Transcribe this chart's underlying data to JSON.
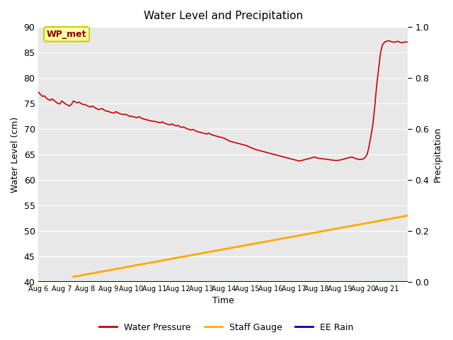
{
  "title": "Water Level and Precipitation",
  "xlabel": "Time",
  "ylabel_left": "Water Level (cm)",
  "ylabel_right": "Precipitation",
  "ylim_left": [
    40,
    90
  ],
  "ylim_right": [
    0.0,
    1.0
  ],
  "yticks_left": [
    40,
    45,
    50,
    55,
    60,
    65,
    70,
    75,
    80,
    85,
    90
  ],
  "yticks_right": [
    0.0,
    0.2,
    0.4,
    0.6,
    0.8,
    1.0
  ],
  "bg_color": "#e8e8e8",
  "legend_labels": [
    "Water Pressure",
    "Staff Gauge",
    "EE Rain"
  ],
  "legend_colors": [
    "#cc0000",
    "#ffaa00",
    "#0000bb"
  ],
  "annotation_text": "WP_met",
  "water_pressure": {
    "x": [
      0.0,
      0.08,
      0.17,
      0.25,
      0.33,
      0.42,
      0.5,
      0.58,
      0.67,
      0.75,
      0.83,
      0.92,
      1.0,
      1.08,
      1.17,
      1.25,
      1.33,
      1.42,
      1.5,
      1.58,
      1.67,
      1.75,
      1.83,
      1.92,
      2.0,
      2.08,
      2.17,
      2.25,
      2.33,
      2.42,
      2.5,
      2.58,
      2.67,
      2.75,
      2.83,
      2.92,
      3.0,
      3.08,
      3.17,
      3.25,
      3.33,
      3.42,
      3.5,
      3.58,
      3.67,
      3.75,
      3.83,
      3.92,
      4.0,
      4.08,
      4.17,
      4.25,
      4.33,
      4.42,
      4.5,
      4.58,
      4.67,
      4.75,
      4.83,
      4.92,
      5.0,
      5.08,
      5.17,
      5.25,
      5.33,
      5.42,
      5.5,
      5.58,
      5.67,
      5.75,
      5.83,
      5.92,
      6.0,
      6.08,
      6.17,
      6.25,
      6.33,
      6.42,
      6.5,
      6.58,
      6.67,
      6.75,
      6.83,
      6.92,
      7.0,
      7.08,
      7.17,
      7.25,
      7.33,
      7.42,
      7.5,
      7.58,
      7.67,
      7.75,
      7.83,
      7.92,
      8.0,
      8.08,
      8.17,
      8.25,
      8.33,
      8.42,
      8.5,
      8.58,
      8.67,
      8.75,
      8.83,
      8.92,
      9.0,
      9.08,
      9.17,
      9.25,
      9.33,
      9.42,
      9.5,
      9.58,
      9.67,
      9.75,
      9.83,
      9.92,
      10.0,
      10.08,
      10.17,
      10.25,
      10.33,
      10.42,
      10.5,
      10.58,
      10.67,
      10.75,
      10.83,
      10.92,
      11.0,
      11.08,
      11.17,
      11.25,
      11.33,
      11.42,
      11.5,
      11.58,
      11.67,
      11.75,
      11.83,
      11.92,
      12.0,
      12.17,
      12.33,
      12.5,
      12.67,
      12.83,
      13.0,
      13.17,
      13.33,
      13.5,
      13.67,
      13.83,
      14.0,
      14.08,
      14.17,
      14.25,
      14.33,
      14.42,
      14.5,
      14.58,
      14.67,
      14.75,
      14.83,
      14.92,
      15.0,
      15.08,
      15.17,
      15.25,
      15.33,
      15.42,
      15.5,
      15.58,
      15.67,
      15.75,
      15.83,
      15.92
    ],
    "y": [
      77.2,
      76.8,
      76.4,
      76.5,
      76.1,
      75.8,
      75.6,
      75.9,
      75.6,
      75.3,
      75.0,
      74.9,
      75.5,
      75.2,
      74.9,
      74.7,
      74.5,
      74.8,
      75.5,
      75.3,
      75.1,
      75.3,
      75.0,
      74.8,
      74.8,
      74.6,
      74.4,
      74.3,
      74.5,
      74.2,
      74.0,
      73.8,
      73.9,
      74.0,
      73.7,
      73.5,
      73.5,
      73.3,
      73.2,
      73.1,
      73.4,
      73.2,
      73.0,
      72.9,
      72.8,
      72.9,
      72.7,
      72.5,
      72.5,
      72.4,
      72.3,
      72.2,
      72.4,
      72.2,
      72.0,
      71.9,
      71.8,
      71.7,
      71.6,
      71.5,
      71.5,
      71.4,
      71.3,
      71.2,
      71.4,
      71.2,
      71.0,
      70.9,
      70.8,
      71.0,
      70.8,
      70.6,
      70.7,
      70.5,
      70.3,
      70.4,
      70.2,
      70.0,
      69.9,
      69.8,
      69.9,
      69.7,
      69.5,
      69.4,
      69.3,
      69.2,
      69.1,
      69.0,
      69.2,
      69.0,
      68.8,
      68.7,
      68.6,
      68.5,
      68.4,
      68.3,
      68.2,
      68.0,
      67.8,
      67.6,
      67.5,
      67.4,
      67.3,
      67.2,
      67.1,
      67.0,
      66.9,
      66.8,
      66.7,
      66.5,
      66.3,
      66.2,
      66.0,
      65.9,
      65.8,
      65.7,
      65.6,
      65.5,
      65.4,
      65.3,
      65.2,
      65.1,
      65.0,
      64.9,
      64.8,
      64.7,
      64.6,
      64.5,
      64.4,
      64.3,
      64.2,
      64.1,
      64.0,
      63.9,
      63.8,
      63.7,
      63.8,
      63.9,
      64.0,
      64.1,
      64.2,
      64.3,
      64.4,
      64.5,
      64.3,
      64.2,
      64.1,
      64.0,
      63.9,
      63.8,
      63.9,
      64.1,
      64.3,
      64.5,
      64.2,
      64.0,
      64.1,
      64.4,
      65.0,
      66.5,
      68.5,
      71.0,
      74.5,
      78.5,
      82.0,
      85.0,
      86.5,
      87.0,
      87.2,
      87.3,
      87.2,
      87.1,
      87.0,
      87.1,
      87.2,
      87.0,
      86.9,
      87.0,
      87.1,
      87.0
    ],
    "color": "#cc0000",
    "linewidth": 1.2
  },
  "staff_gauge": {
    "x": [
      1.5,
      15.92
    ],
    "y": [
      41.0,
      53.0
    ],
    "color": "#ffaa00",
    "linewidth": 2.0
  },
  "ee_rain": {
    "x": [
      0.0,
      15.92
    ],
    "y": [
      40.0,
      40.0
    ],
    "color": "#0000bb",
    "linewidth": 1.5
  },
  "xtick_labels": [
    "Aug 6",
    "Aug 7",
    "Aug 8",
    "Aug 9",
    "Aug 10",
    "Aug 11",
    "Aug 12",
    "Aug 13",
    "Aug 14",
    "Aug 15",
    "Aug 16",
    "Aug 17",
    "Aug 18",
    "Aug 19",
    "Aug 20",
    "Aug 21"
  ],
  "xtick_days": [
    0,
    1,
    2,
    3,
    4,
    5,
    6,
    7,
    8,
    9,
    10,
    11,
    12,
    13,
    14,
    15
  ],
  "xlim": [
    0,
    15.92
  ]
}
